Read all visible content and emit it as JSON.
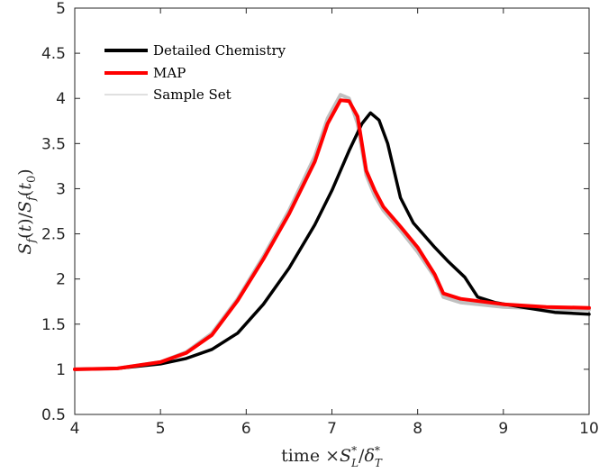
{
  "chart_data": {
    "type": "line",
    "xlabel": "time ×S*_L/δ*_T",
    "ylabel": "S_f(t)/S_f(t_0)",
    "xlim": [
      4,
      10
    ],
    "ylim": [
      0.5,
      5
    ],
    "xticks": [
      "4",
      "5",
      "6",
      "7",
      "8",
      "9",
      "10"
    ],
    "yticks": [
      "0.5",
      "1",
      "1.5",
      "2",
      "2.5",
      "3",
      "3.5",
      "4",
      "4.5",
      "5"
    ],
    "grid": false,
    "legend_position": "top-left",
    "series": [
      {
        "name": "Detailed Chemistry",
        "color": "#000000",
        "x": [
          4.0,
          4.5,
          5.0,
          5.3,
          5.6,
          5.9,
          6.2,
          6.5,
          6.8,
          7.0,
          7.2,
          7.35,
          7.45,
          7.55,
          7.65,
          7.8,
          7.95,
          8.2,
          8.35,
          8.55,
          8.7,
          8.9,
          9.2,
          9.6,
          10.0
        ],
        "values": [
          1.0,
          1.01,
          1.06,
          1.12,
          1.22,
          1.4,
          1.72,
          2.12,
          2.6,
          2.98,
          3.42,
          3.72,
          3.84,
          3.76,
          3.5,
          2.9,
          2.62,
          2.35,
          2.2,
          2.02,
          1.8,
          1.74,
          1.69,
          1.63,
          1.61
        ]
      },
      {
        "name": "MAP",
        "color": "#ff0000",
        "x": [
          4.0,
          4.5,
          5.0,
          5.3,
          5.6,
          5.9,
          6.2,
          6.5,
          6.8,
          6.95,
          7.1,
          7.2,
          7.3,
          7.4,
          7.5,
          7.6,
          7.8,
          8.0,
          8.2,
          8.3,
          8.5,
          9.0,
          9.5,
          10.0
        ],
        "values": [
          1.0,
          1.01,
          1.08,
          1.18,
          1.38,
          1.76,
          2.22,
          2.72,
          3.3,
          3.72,
          3.98,
          3.97,
          3.8,
          3.2,
          2.98,
          2.8,
          2.58,
          2.35,
          2.05,
          1.84,
          1.78,
          1.72,
          1.69,
          1.68
        ]
      },
      {
        "name": "Sample Set",
        "color": "#c0c0c0",
        "x": [
          4.0,
          4.5,
          5.0,
          5.3,
          5.6,
          5.9,
          6.2,
          6.5,
          6.8,
          6.95,
          7.1,
          7.2,
          7.3,
          7.4,
          7.5,
          7.6,
          7.8,
          8.0,
          8.2,
          8.3,
          8.5,
          9.0,
          9.5,
          10.0
        ],
        "values": [
          1.0,
          1.01,
          1.08,
          1.19,
          1.4,
          1.78,
          2.25,
          2.76,
          3.36,
          3.78,
          4.04,
          4.0,
          3.72,
          3.15,
          2.92,
          2.76,
          2.54,
          2.3,
          2.02,
          1.8,
          1.74,
          1.69,
          1.67,
          1.66
        ]
      }
    ]
  }
}
